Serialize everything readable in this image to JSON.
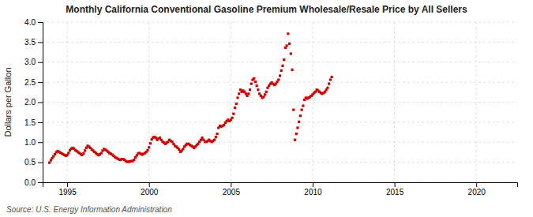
{
  "chart_data": {
    "type": "scatter",
    "title": "Monthly California Conventional Gasoline Premium Wholesale/Resale Price by All Sellers",
    "y_label": "Dollars per Gallon",
    "annotations": [
      "Source: U.S. Energy Information Administration"
    ],
    "color": "#cc0000",
    "marker": "square",
    "grid": true,
    "xlim": [
      1993.5,
      2022.5
    ],
    "ylim": [
      0.0,
      4.0
    ],
    "xticks": [
      1995,
      2000,
      2005,
      2010,
      2015,
      2020
    ],
    "yticks": [
      {
        "value": 0.0,
        "label": "0.0"
      },
      0.5,
      {
        "value": 1.0,
        "label": "1.0"
      },
      1.5,
      {
        "value": 2.0,
        "label": "2.0"
      },
      2.5,
      {
        "value": 3.0,
        "label": "3.0"
      },
      3.5,
      {
        "value": 4.0,
        "label": "4.0"
      }
    ],
    "x": [
      1993.917,
      1994.0,
      1994.083,
      1994.167,
      1994.25,
      1994.333,
      1994.417,
      1994.5,
      1994.583,
      1994.667,
      1994.75,
      1994.833,
      1994.917,
      1995.0,
      1995.083,
      1995.167,
      1995.25,
      1995.333,
      1995.417,
      1995.5,
      1995.583,
      1995.667,
      1995.75,
      1995.833,
      1995.917,
      1996.0,
      1996.083,
      1996.167,
      1996.25,
      1996.333,
      1996.417,
      1996.5,
      1996.583,
      1996.667,
      1996.75,
      1996.833,
      1996.917,
      1997.0,
      1997.083,
      1997.167,
      1997.25,
      1997.333,
      1997.417,
      1997.5,
      1997.583,
      1997.667,
      1997.75,
      1997.833,
      1997.917,
      1998.0,
      1998.083,
      1998.167,
      1998.25,
      1998.333,
      1998.417,
      1998.5,
      1998.583,
      1998.667,
      1998.75,
      1998.833,
      1998.917,
      1999.0,
      1999.083,
      1999.167,
      1999.25,
      1999.333,
      1999.417,
      1999.5,
      1999.583,
      1999.667,
      1999.75,
      1999.833,
      1999.917,
      2000.0,
      2000.083,
      2000.167,
      2000.25,
      2000.333,
      2000.417,
      2000.5,
      2000.583,
      2000.667,
      2000.75,
      2000.833,
      2000.917,
      2001.0,
      2001.083,
      2001.167,
      2001.25,
      2001.333,
      2001.417,
      2001.5,
      2001.583,
      2001.667,
      2001.75,
      2001.833,
      2001.917,
      2002.0,
      2002.083,
      2002.167,
      2002.25,
      2002.333,
      2002.417,
      2002.5,
      2002.583,
      2002.667,
      2002.75,
      2002.833,
      2002.917,
      2003.0,
      2003.083,
      2003.167,
      2003.25,
      2003.333,
      2003.417,
      2003.5,
      2003.583,
      2003.667,
      2003.75,
      2003.833,
      2003.917,
      2004.0,
      2004.083,
      2004.167,
      2004.25,
      2004.333,
      2004.417,
      2004.5,
      2004.583,
      2004.667,
      2004.75,
      2004.833,
      2004.917,
      2005.0,
      2005.083,
      2005.167,
      2005.25,
      2005.333,
      2005.417,
      2005.5,
      2005.583,
      2005.667,
      2005.75,
      2005.833,
      2005.917,
      2006.0,
      2006.083,
      2006.167,
      2006.25,
      2006.333,
      2006.417,
      2006.5,
      2006.583,
      2006.667,
      2006.75,
      2006.833,
      2006.917,
      2007.0,
      2007.083,
      2007.167,
      2007.25,
      2007.333,
      2007.417,
      2007.5,
      2007.583,
      2007.667,
      2007.75,
      2007.833,
      2007.917,
      2008.0,
      2008.083,
      2008.167,
      2008.25,
      2008.333,
      2008.417,
      2008.5,
      2008.583,
      2008.667,
      2008.75,
      2008.833,
      2008.917,
      2009.0,
      2009.083,
      2009.167,
      2009.25,
      2009.333,
      2009.417,
      2009.5,
      2009.583,
      2009.667,
      2009.75,
      2009.833,
      2009.917,
      2010.0,
      2010.083,
      2010.167,
      2010.25,
      2010.333,
      2010.417,
      2010.5,
      2010.583,
      2010.667,
      2010.75,
      2010.833,
      2010.917,
      2011.0,
      2011.083,
      2011.167
    ],
    "values": [
      0.49,
      0.55,
      0.6,
      0.65,
      0.7,
      0.75,
      0.78,
      0.76,
      0.74,
      0.72,
      0.7,
      0.68,
      0.66,
      0.68,
      0.73,
      0.8,
      0.84,
      0.86,
      0.84,
      0.8,
      0.78,
      0.75,
      0.73,
      0.7,
      0.68,
      0.72,
      0.79,
      0.86,
      0.91,
      0.89,
      0.86,
      0.82,
      0.79,
      0.76,
      0.73,
      0.7,
      0.68,
      0.7,
      0.73,
      0.79,
      0.83,
      0.81,
      0.79,
      0.76,
      0.73,
      0.71,
      0.69,
      0.66,
      0.63,
      0.61,
      0.59,
      0.57,
      0.56,
      0.58,
      0.58,
      0.56,
      0.53,
      0.51,
      0.51,
      0.52,
      0.53,
      0.53,
      0.56,
      0.62,
      0.67,
      0.72,
      0.73,
      0.71,
      0.69,
      0.71,
      0.73,
      0.76,
      0.8,
      0.87,
      0.97,
      1.07,
      1.12,
      1.13,
      1.11,
      1.06,
      1.09,
      1.11,
      1.06,
      1.01,
      0.99,
      0.96,
      0.99,
      1.01,
      1.06,
      1.03,
      1.01,
      0.96,
      0.91,
      0.89,
      0.86,
      0.82,
      0.76,
      0.79,
      0.83,
      0.89,
      0.93,
      0.96,
      0.96,
      0.93,
      0.91,
      0.89,
      0.86,
      0.89,
      0.93,
      0.96,
      1.01,
      1.06,
      1.11,
      1.06,
      1.01,
      1.01,
      1.03,
      1.06,
      1.03,
      1.01,
      1.03,
      1.06,
      1.13,
      1.21,
      1.36,
      1.41,
      1.39,
      1.41,
      1.43,
      1.49,
      1.53,
      1.56,
      1.53,
      1.56,
      1.61,
      1.71,
      1.86,
      1.96,
      2.11,
      2.21,
      2.31,
      2.26,
      2.29,
      2.26,
      2.21,
      2.16,
      2.21,
      2.31,
      2.46,
      2.56,
      2.59,
      2.51,
      2.41,
      2.31,
      2.21,
      2.16,
      2.11,
      2.13,
      2.19,
      2.26,
      2.36,
      2.41,
      2.46,
      2.49,
      2.46,
      2.43,
      2.46,
      2.51,
      2.56,
      2.66,
      2.79,
      2.91,
      3.06,
      3.36,
      3.41,
      3.71,
      3.46,
      3.21,
      2.81,
      1.81,
      1.06,
      1.21,
      1.36,
      1.51,
      1.66,
      1.81,
      1.91,
      2.06,
      2.11,
      2.09,
      2.11,
      2.13,
      2.16,
      2.19,
      2.23,
      2.26,
      2.31,
      2.29,
      2.26,
      2.23,
      2.21,
      2.23,
      2.26,
      2.31,
      2.36,
      2.46,
      2.56,
      2.63
    ]
  }
}
